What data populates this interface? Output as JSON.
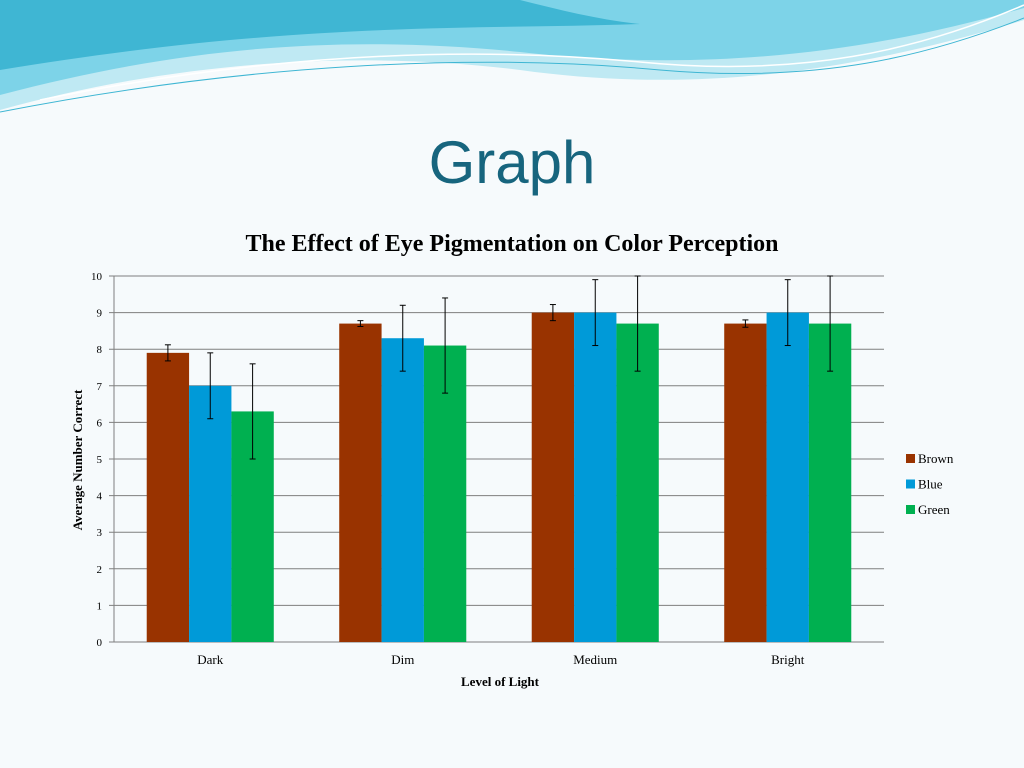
{
  "slide": {
    "title": "Graph"
  },
  "colors": {
    "title": "#17657e",
    "wave_light": "#bfe9f3",
    "wave_mid": "#7dd3e8",
    "wave_dark": "#3fb6d3",
    "background": "#f6fafc"
  },
  "chart_data": {
    "type": "bar",
    "title": "The Effect of Eye Pigmentation on Color Perception",
    "xlabel": "Level of Light",
    "ylabel": "Average Number Correct",
    "categories": [
      "Dark",
      "Dim",
      "Medium",
      "Bright"
    ],
    "ylim": [
      0,
      10
    ],
    "yticks": [
      "0",
      "1",
      "2",
      "3",
      "4",
      "5",
      "6",
      "7",
      "8",
      "9",
      "10"
    ],
    "grid": true,
    "legend_position": "right",
    "series": [
      {
        "name": "Brown",
        "color": "#993300",
        "values": [
          7.9,
          8.7,
          9.0,
          8.7
        ],
        "error": [
          0.22,
          0.08,
          0.22,
          0.1
        ]
      },
      {
        "name": "Blue",
        "color": "#009ad8",
        "values": [
          7.0,
          8.3,
          9.0,
          9.0
        ],
        "error": [
          0.9,
          0.9,
          0.9,
          0.9
        ]
      },
      {
        "name": "Green",
        "color": "#00b050",
        "values": [
          6.3,
          8.1,
          8.7,
          8.7
        ],
        "error": [
          1.3,
          1.3,
          1.3,
          1.3
        ]
      }
    ]
  }
}
